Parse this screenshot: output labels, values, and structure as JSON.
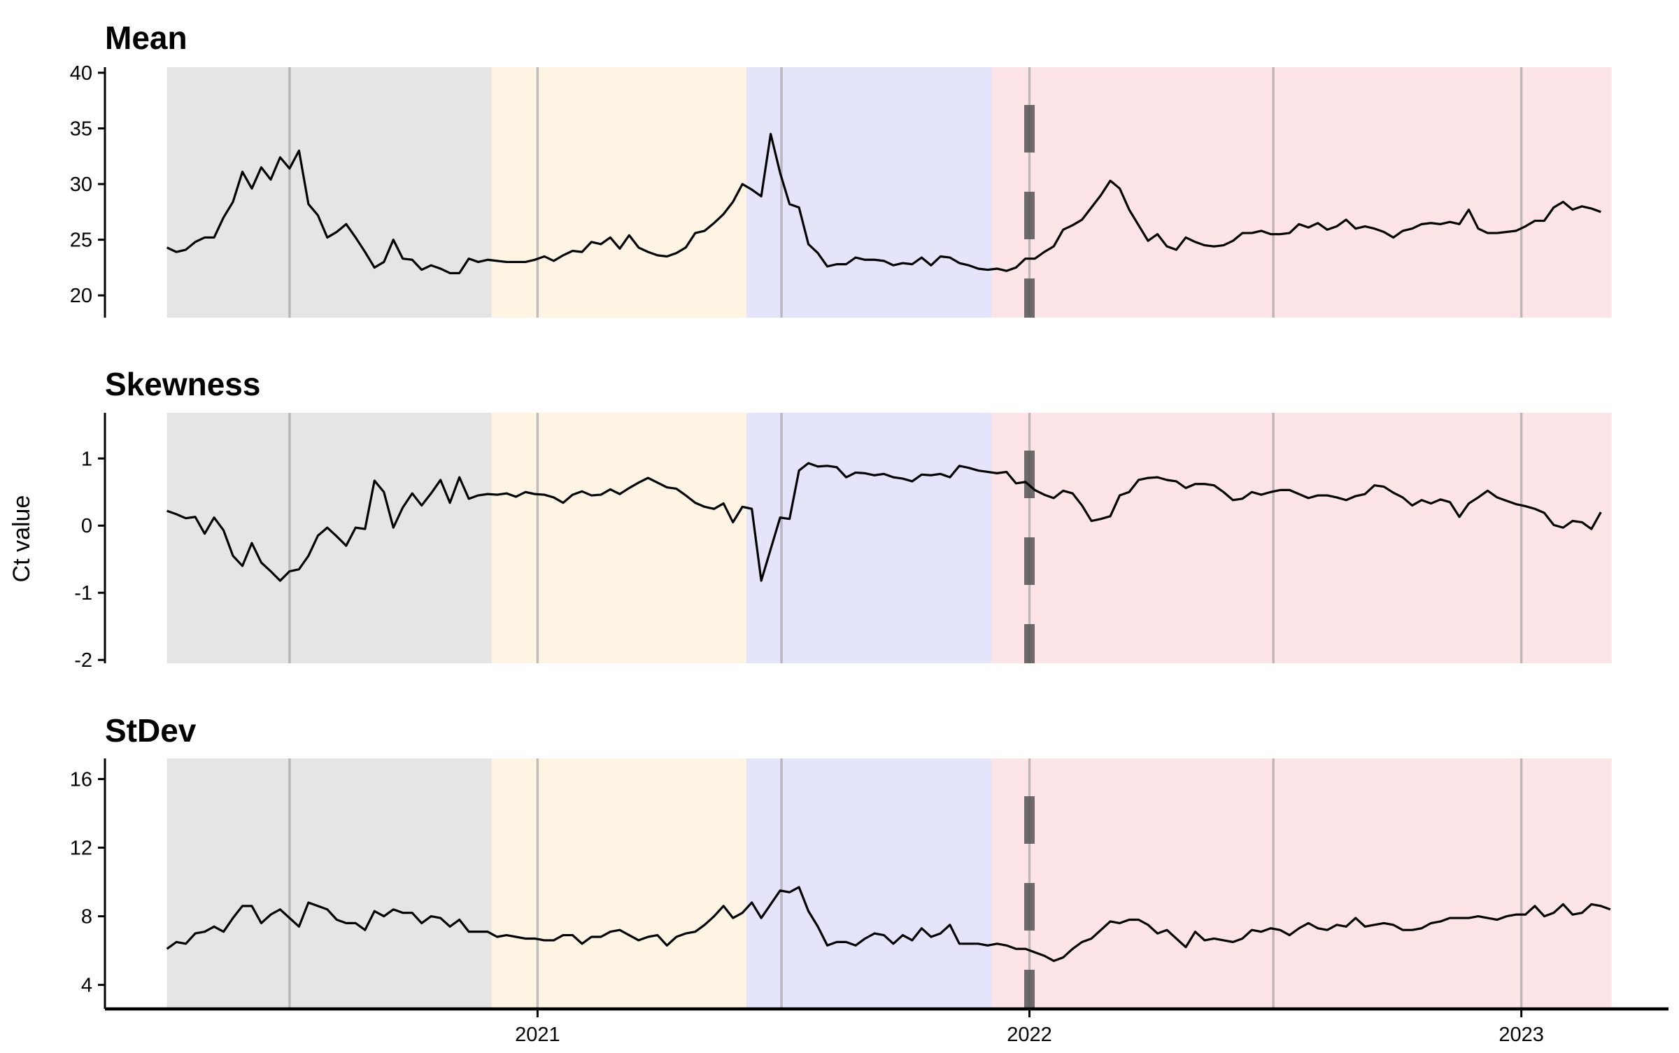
{
  "chart_data": {
    "type": "line",
    "ylabel": "Ct value",
    "x_ticks": [
      "2021",
      "2022",
      "2023"
    ],
    "x_range": [
      "2020-02-15",
      "2023-04-15"
    ],
    "background_bands": [
      {
        "start": "2020-04-01",
        "end": "2020-11-28",
        "color": "#e5e5e5"
      },
      {
        "start": "2020-11-28",
        "end": "2021-06-05",
        "color": "#fdf4e4"
      },
      {
        "start": "2021-06-05",
        "end": "2021-12-04",
        "color": "#e4e4fb"
      },
      {
        "start": "2021-12-04",
        "end": "2023-03-09",
        "color": "#fde4e7"
      }
    ],
    "vertical_lines": [
      "2020-07-01",
      "2021-01-01",
      "2021-07-01",
      "2022-01-01",
      "2022-07-01",
      "2023-01-01"
    ],
    "dashed_line": "2022-01-01",
    "line_color": "#000000",
    "series": [
      {
        "title": "Mean",
        "ylim": [
          18,
          40.5
        ],
        "yticks": [
          20,
          25,
          30,
          35,
          40
        ],
        "start": "2020-04-01",
        "step_days": 7,
        "values": [
          24.3,
          23.9,
          24.1,
          24.8,
          25.2,
          25.2,
          27.0,
          28.4,
          31.1,
          29.6,
          31.5,
          30.4,
          32.4,
          31.4,
          33.0,
          28.2,
          27.2,
          25.2,
          25.7,
          26.4,
          25.2,
          23.9,
          22.5,
          23.0,
          25.0,
          23.3,
          23.2,
          22.3,
          22.7,
          22.4,
          22.0,
          22.0,
          23.3,
          23.0,
          23.2,
          23.1,
          23.0,
          23.0,
          23.0,
          23.2,
          23.5,
          23.1,
          23.6,
          24.0,
          23.9,
          24.8,
          24.6,
          25.2,
          24.2,
          25.4,
          24.3,
          23.9,
          23.6,
          23.5,
          23.8,
          24.3,
          25.6,
          25.8,
          26.5,
          27.3,
          28.4,
          30.0,
          29.5,
          28.9,
          34.5,
          31.0,
          28.2,
          27.9,
          24.6,
          23.8,
          22.6,
          22.8,
          22.8,
          23.4,
          23.2,
          23.2,
          23.1,
          22.7,
          22.9,
          22.8,
          23.4,
          22.7,
          23.5,
          23.4,
          22.9,
          22.7,
          22.4,
          22.3,
          22.4,
          22.2,
          22.5,
          23.3,
          23.3,
          23.9,
          24.4,
          25.9,
          26.3,
          26.8,
          27.9,
          29.0,
          30.3,
          29.6,
          27.7,
          26.3,
          24.9,
          25.5,
          24.4,
          24.1,
          25.2,
          24.8,
          24.5,
          24.4,
          24.5,
          24.9,
          25.6,
          25.6,
          25.8,
          25.5,
          25.5,
          25.6,
          26.4,
          26.1,
          26.5,
          25.9,
          26.2,
          26.8,
          26.0,
          26.2,
          26.0,
          25.7,
          25.2,
          25.8,
          26.0,
          26.4,
          26.5,
          26.4,
          26.6,
          26.4,
          27.7,
          26.0,
          25.6,
          25.6,
          25.7,
          25.8,
          26.2,
          26.7,
          26.7,
          27.9,
          28.4,
          27.7,
          28.0,
          27.8,
          27.5
        ]
      },
      {
        "title": "Skewness",
        "ylim": [
          -2.05,
          1.68
        ],
        "yticks": [
          1,
          0,
          -1,
          -2
        ],
        "start": "2020-04-01",
        "step_days": 7,
        "values": [
          0.22,
          0.17,
          0.11,
          0.13,
          -0.12,
          0.12,
          -0.07,
          -0.45,
          -0.6,
          -0.26,
          -0.55,
          -0.68,
          -0.82,
          -0.68,
          -0.65,
          -0.45,
          -0.15,
          -0.03,
          -0.16,
          -0.3,
          -0.03,
          -0.05,
          0.67,
          0.5,
          -0.03,
          0.27,
          0.48,
          0.3,
          0.48,
          0.68,
          0.34,
          0.72,
          0.4,
          0.45,
          0.47,
          0.46,
          0.48,
          0.43,
          0.5,
          0.47,
          0.46,
          0.42,
          0.34,
          0.46,
          0.51,
          0.45,
          0.46,
          0.54,
          0.47,
          0.56,
          0.64,
          0.71,
          0.64,
          0.57,
          0.55,
          0.45,
          0.34,
          0.28,
          0.25,
          0.33,
          0.05,
          0.28,
          0.25,
          -0.82,
          -0.35,
          0.12,
          0.1,
          0.82,
          0.93,
          0.88,
          0.89,
          0.87,
          0.72,
          0.79,
          0.78,
          0.75,
          0.77,
          0.72,
          0.7,
          0.66,
          0.76,
          0.75,
          0.77,
          0.72,
          0.89,
          0.86,
          0.82,
          0.8,
          0.78,
          0.8,
          0.63,
          0.65,
          0.53,
          0.46,
          0.41,
          0.52,
          0.48,
          0.3,
          0.07,
          0.1,
          0.14,
          0.45,
          0.5,
          0.68,
          0.71,
          0.72,
          0.68,
          0.66,
          0.56,
          0.62,
          0.62,
          0.6,
          0.5,
          0.38,
          0.4,
          0.5,
          0.46,
          0.5,
          0.53,
          0.53,
          0.47,
          0.41,
          0.45,
          0.45,
          0.42,
          0.38,
          0.44,
          0.47,
          0.6,
          0.58,
          0.49,
          0.42,
          0.3,
          0.38,
          0.33,
          0.39,
          0.35,
          0.13,
          0.33,
          0.42,
          0.52,
          0.42,
          0.37,
          0.32,
          0.29,
          0.25,
          0.19,
          0.01,
          -0.03,
          0.07,
          0.05,
          -0.05,
          0.2
        ]
      },
      {
        "title": "StDev",
        "ylim": [
          2.6,
          17.2
        ],
        "yticks": [
          16,
          12,
          8,
          4
        ],
        "start": "2020-04-01",
        "step_days": 7,
        "values": [
          6.1,
          6.5,
          6.4,
          7.0,
          7.1,
          7.4,
          7.1,
          7.9,
          8.6,
          8.6,
          7.6,
          8.1,
          8.4,
          7.9,
          7.4,
          8.8,
          8.6,
          8.4,
          7.8,
          7.6,
          7.6,
          7.2,
          8.3,
          8.0,
          8.4,
          8.2,
          8.2,
          7.6,
          8.0,
          7.9,
          7.4,
          7.8,
          7.1,
          7.1,
          7.1,
          6.8,
          6.9,
          6.8,
          6.7,
          6.7,
          6.6,
          6.6,
          6.9,
          6.9,
          6.4,
          6.8,
          6.8,
          7.1,
          7.2,
          6.9,
          6.6,
          6.8,
          6.9,
          6.3,
          6.8,
          7.0,
          7.1,
          7.5,
          8.0,
          8.6,
          7.9,
          8.2,
          8.8,
          7.9,
          8.7,
          9.5,
          9.4,
          9.7,
          8.3,
          7.4,
          6.3,
          6.5,
          6.5,
          6.3,
          6.7,
          7.0,
          6.9,
          6.4,
          6.9,
          6.6,
          7.3,
          6.8,
          7.0,
          7.5,
          6.4,
          6.4,
          6.4,
          6.3,
          6.4,
          6.3,
          6.1,
          6.1,
          5.9,
          5.7,
          5.4,
          5.6,
          6.1,
          6.5,
          6.7,
          7.2,
          7.7,
          7.6,
          7.8,
          7.8,
          7.5,
          7.0,
          7.2,
          6.7,
          6.2,
          7.1,
          6.6,
          6.7,
          6.6,
          6.5,
          6.7,
          7.2,
          7.1,
          7.3,
          7.2,
          6.9,
          7.3,
          7.6,
          7.3,
          7.2,
          7.5,
          7.4,
          7.9,
          7.4,
          7.5,
          7.6,
          7.5,
          7.2,
          7.2,
          7.3,
          7.6,
          7.7,
          7.9,
          7.9,
          7.9,
          8.0,
          7.9,
          7.8,
          8.0,
          8.1,
          8.1,
          8.6,
          8.0,
          8.2,
          8.7,
          8.1,
          8.2,
          8.7,
          8.6,
          8.4
        ]
      }
    ]
  }
}
